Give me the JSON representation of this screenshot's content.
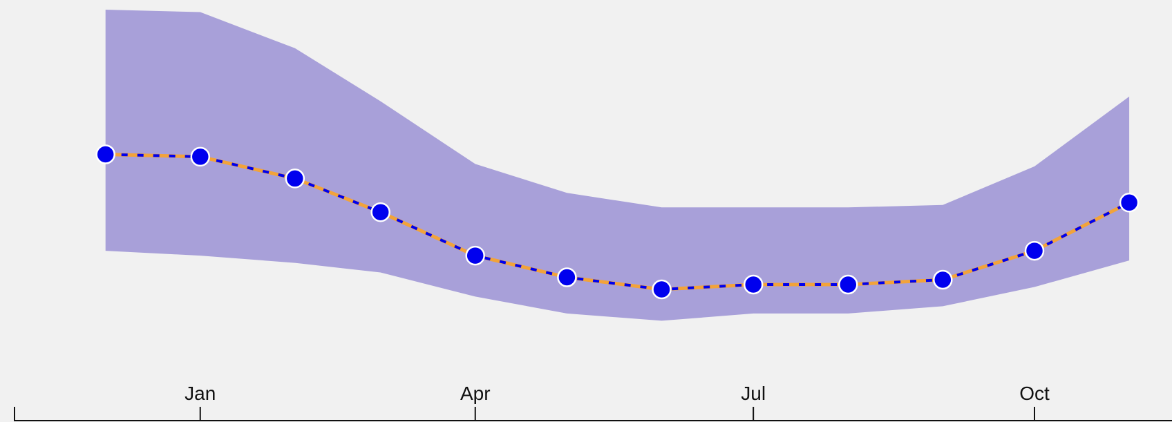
{
  "chart_data": {
    "type": "line",
    "x": [
      "2000-12-01",
      "2001-01-01",
      "2001-02-01",
      "2001-03-01",
      "2001-04-01",
      "2001-05-01",
      "2001-06-01",
      "2001-07-01",
      "2001-08-01",
      "2001-09-01",
      "2001-10-01",
      "2001-11-01"
    ],
    "series": [
      {
        "values": [
          8.8,
          8.75,
          8.3,
          7.6,
          6.7,
          6.25,
          6.0,
          6.1,
          6.1,
          6.2,
          6.8,
          7.8
        ]
      }
    ],
    "band": {
      "upper": [
        11.8,
        11.75,
        11.0,
        9.9,
        8.6,
        8.0,
        7.7,
        7.7,
        7.7,
        7.75,
        8.55,
        10.0
      ],
      "lower": [
        6.8,
        6.7,
        6.55,
        6.35,
        5.85,
        5.5,
        5.35,
        5.5,
        5.5,
        5.65,
        6.05,
        6.6
      ]
    },
    "xaxis": {
      "ticks": [
        "2001-01-01",
        "2001-04-01",
        "2001-07-01",
        "2001-10-01"
      ],
      "tick_labels": [
        "Jan",
        "Apr",
        "Jul",
        "Oct"
      ],
      "domain": [
        "2000-11-01",
        "2001-11-15"
      ]
    },
    "ylim": [
      3.25,
      12.0
    ],
    "grid": false,
    "colors": {
      "band": "#a8a0d9",
      "line_main": "#f2a33a",
      "line_dash": "#0000ee",
      "marker_fill": "#0000ee",
      "marker_stroke": "#ffffff",
      "axis": "#111111",
      "background": "#f1f1f1"
    }
  }
}
